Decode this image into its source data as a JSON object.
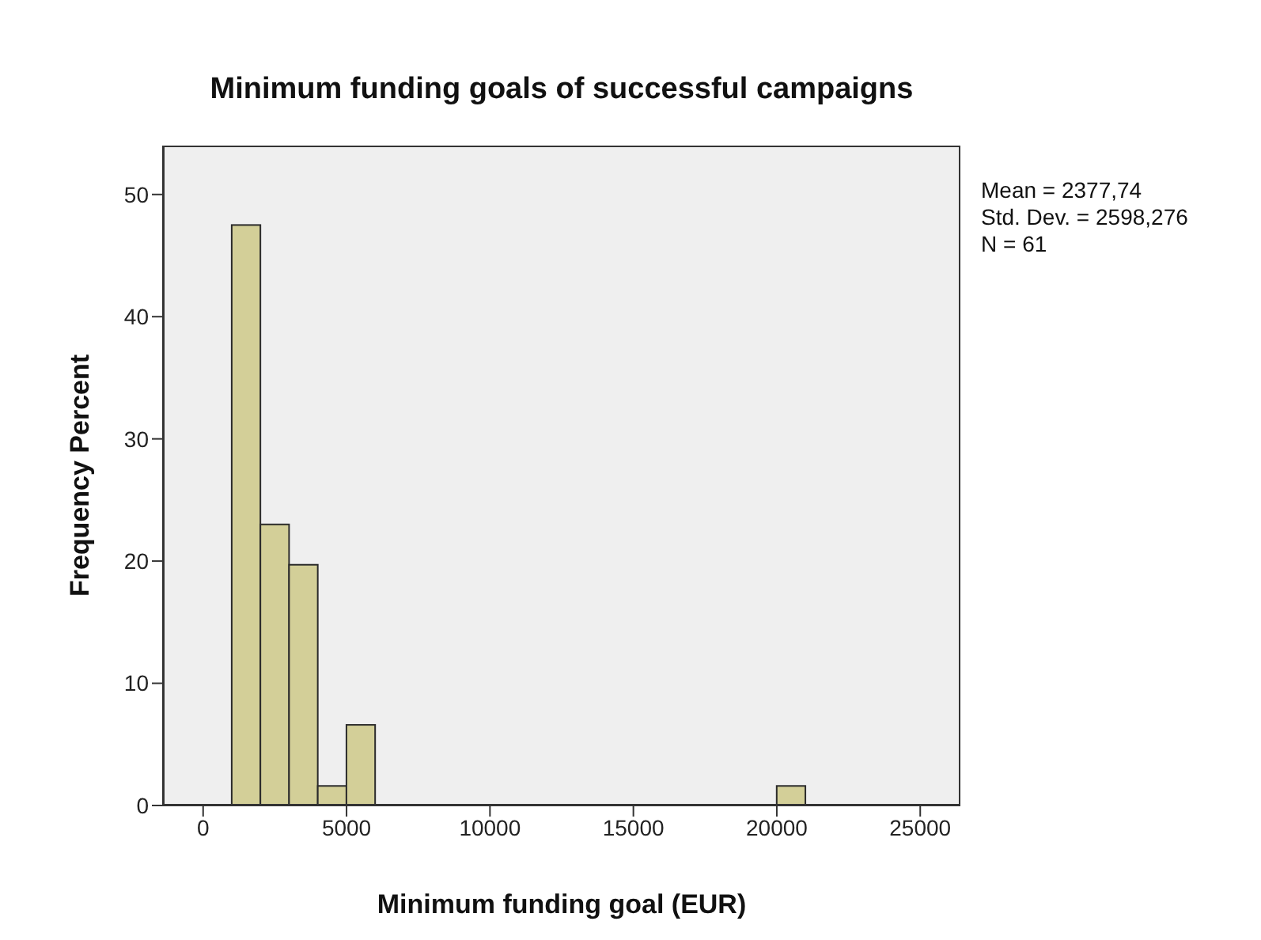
{
  "chart_data": {
    "type": "histogram",
    "title": "Minimum funding goals of successful campaigns",
    "xlabel": "Minimum funding goal (EUR)",
    "ylabel": "Frequency Percent",
    "annotations": [
      "Mean = 2377,74",
      "Std. Dev. = 2598,276",
      "N = 61"
    ],
    "bins": [
      1000,
      2000,
      3000,
      4000,
      5000,
      6000,
      7000,
      8000,
      9000,
      10000,
      11000,
      12000,
      13000,
      14000,
      15000,
      16000,
      17000,
      18000,
      19000,
      20000,
      21000
    ],
    "values": [
      47.5,
      23.0,
      19.7,
      1.6,
      6.6,
      0,
      0,
      0,
      0,
      0,
      0,
      0,
      0,
      0,
      0,
      0,
      0,
      0,
      0,
      1.6
    ],
    "color": "#d3cf98",
    "xlim": [
      -1400,
      26400
    ],
    "xticks": [
      0,
      5000,
      10000,
      15000,
      20000,
      25000
    ],
    "ylim": [
      0,
      54
    ],
    "yticks": [
      0,
      10,
      20,
      30,
      40,
      50
    ],
    "grid": false
  }
}
